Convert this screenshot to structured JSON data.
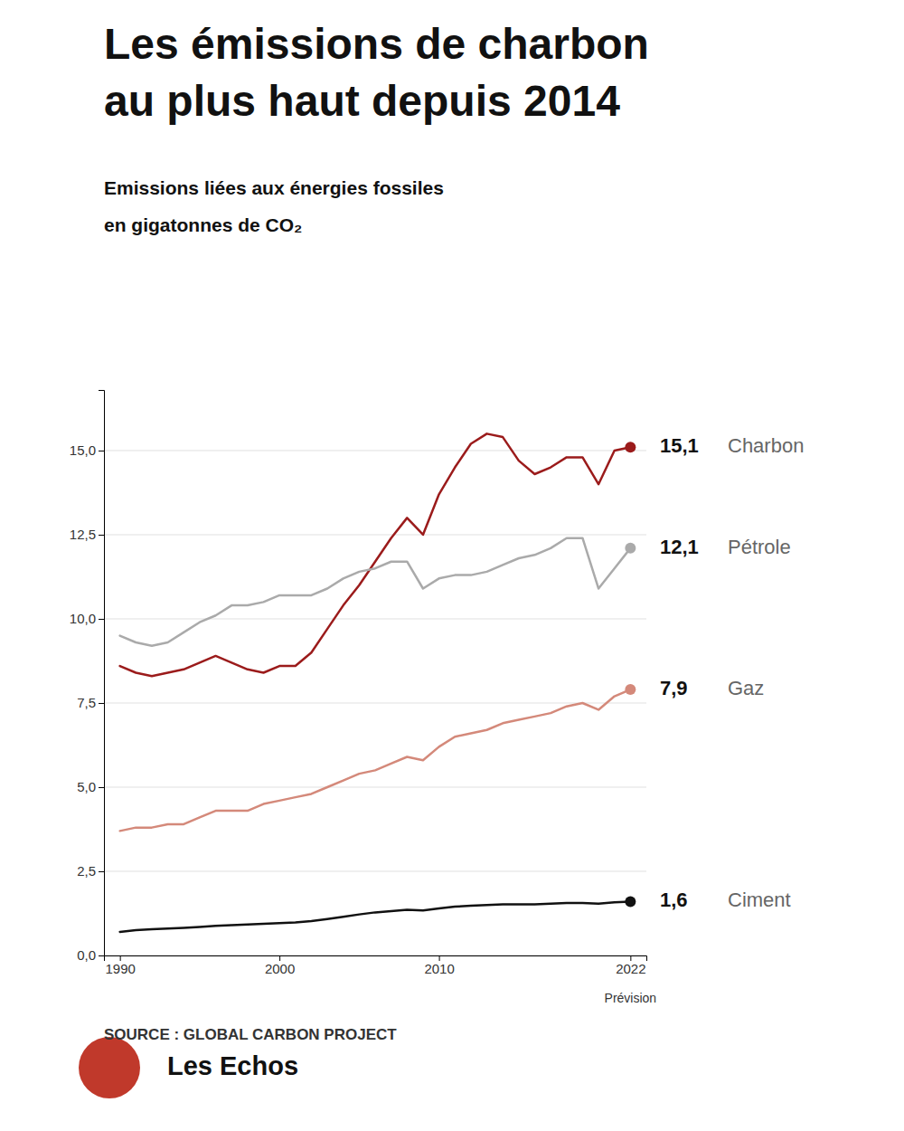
{
  "chart_data": {
    "type": "line",
    "title": [
      "Les émissions de charbon",
      "au plus haut depuis 2014"
    ],
    "subtitle": [
      "Emissions liées aux énergies fossiles",
      "en gigatonnes de CO₂"
    ],
    "source": "SOURCE : GLOBAL CARBON PROJECT",
    "annotations": [
      {
        "x": 2022,
        "text": "Prévision"
      },
      {
        "text": "Les Echos"
      }
    ],
    "x": [
      1990,
      1991,
      1992,
      1993,
      1994,
      1995,
      1996,
      1997,
      1998,
      1999,
      2000,
      2001,
      2002,
      2003,
      2004,
      2005,
      2006,
      2007,
      2008,
      2009,
      2010,
      2011,
      2012,
      2013,
      2014,
      2015,
      2016,
      2017,
      2018,
      2019,
      2020,
      2021,
      2022
    ],
    "series": [
      {
        "name": "Charbon",
        "color": "#9B1B1B",
        "values": [
          8.6,
          8.4,
          8.3,
          8.4,
          8.5,
          8.7,
          8.9,
          8.7,
          8.5,
          8.4,
          8.6,
          8.6,
          9.0,
          9.7,
          10.4,
          11.0,
          11.7,
          12.4,
          13.0,
          12.5,
          13.7,
          14.5,
          15.2,
          15.5,
          15.4,
          14.7,
          14.3,
          14.5,
          14.8,
          14.8,
          14.0,
          15.0,
          15.1
        ],
        "value_labels": [
          null,
          null,
          null,
          null,
          null,
          null,
          null,
          null,
          null,
          null,
          null,
          null,
          null,
          null,
          null,
          null,
          null,
          null,
          null,
          null,
          null,
          null,
          null,
          null,
          null,
          null,
          null,
          null,
          null,
          null,
          null,
          null,
          "15,1"
        ]
      },
      {
        "name": "Pétrole",
        "color": "#AAAAAA",
        "values": [
          9.5,
          9.3,
          9.2,
          9.3,
          9.6,
          9.9,
          10.1,
          10.4,
          10.4,
          10.5,
          10.7,
          10.7,
          10.7,
          10.9,
          11.2,
          11.4,
          11.5,
          11.7,
          11.7,
          10.9,
          11.2,
          11.3,
          11.3,
          11.4,
          11.6,
          11.8,
          11.9,
          12.1,
          12.4,
          12.4,
          10.9,
          11.5,
          12.1
        ],
        "value_labels": [
          null,
          null,
          null,
          null,
          null,
          null,
          null,
          null,
          null,
          null,
          null,
          null,
          null,
          null,
          null,
          null,
          null,
          null,
          null,
          null,
          null,
          null,
          null,
          null,
          null,
          null,
          null,
          null,
          null,
          null,
          null,
          null,
          "12,1"
        ]
      },
      {
        "name": "Gaz",
        "color": "#D4897A",
        "values": [
          3.7,
          3.8,
          3.8,
          3.9,
          3.9,
          4.1,
          4.3,
          4.3,
          4.3,
          4.5,
          4.6,
          4.7,
          4.8,
          5.0,
          5.2,
          5.4,
          5.5,
          5.7,
          5.9,
          5.8,
          6.2,
          6.5,
          6.6,
          6.7,
          6.9,
          7.0,
          7.1,
          7.2,
          7.4,
          7.5,
          7.3,
          7.7,
          7.9
        ],
        "value_labels": [
          null,
          null,
          null,
          null,
          null,
          null,
          null,
          null,
          null,
          null,
          null,
          null,
          null,
          null,
          null,
          null,
          null,
          null,
          null,
          null,
          null,
          null,
          null,
          null,
          null,
          null,
          null,
          null,
          null,
          null,
          null,
          null,
          "7,9"
        ]
      },
      {
        "name": "Ciment",
        "color": "#111111",
        "values": [
          0.7,
          0.75,
          0.78,
          0.8,
          0.82,
          0.85,
          0.88,
          0.9,
          0.92,
          0.94,
          0.96,
          0.98,
          1.02,
          1.08,
          1.15,
          1.22,
          1.28,
          1.32,
          1.36,
          1.34,
          1.4,
          1.45,
          1.48,
          1.5,
          1.52,
          1.52,
          1.52,
          1.54,
          1.56,
          1.56,
          1.54,
          1.58,
          1.6
        ],
        "value_labels": [
          null,
          null,
          null,
          null,
          null,
          null,
          null,
          null,
          null,
          null,
          null,
          null,
          null,
          null,
          null,
          null,
          null,
          null,
          null,
          null,
          null,
          null,
          null,
          null,
          null,
          null,
          null,
          null,
          null,
          null,
          null,
          null,
          "1,6"
        ]
      }
    ],
    "xlim": [
      1989.0,
      2023.0
    ],
    "ylim": [
      0.0,
      16.8
    ],
    "xticks": [
      1990,
      2000,
      2010,
      2022
    ],
    "yticks": [
      {
        "value": 0.0,
        "label": "0,0"
      },
      {
        "value": 2.5,
        "label": "2,5"
      },
      {
        "value": 5.0,
        "label": "5,0"
      },
      {
        "value": 7.5,
        "label": "7,5"
      },
      {
        "value": 10.0,
        "label": "10,0"
      },
      {
        "value": 12.5,
        "label": "12,5"
      },
      {
        "value": 15.0,
        "label": "15,0"
      }
    ],
    "grid": true
  }
}
